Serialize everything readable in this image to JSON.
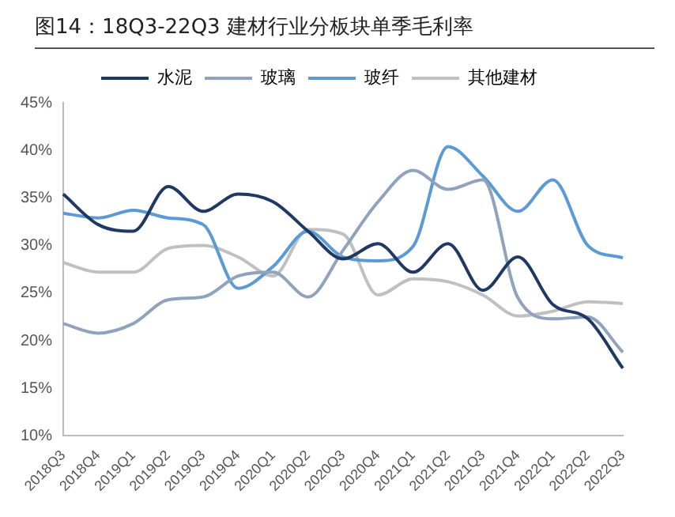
{
  "chart_data": {
    "type": "line",
    "title": "图14：18Q3-22Q3 建材行业分板块单季毛利率",
    "categories": [
      "2018Q3",
      "2018Q4",
      "2019Q1",
      "2019Q2",
      "2019Q3",
      "2019Q4",
      "2020Q1",
      "2020Q2",
      "2020Q3",
      "2020Q4",
      "2021Q1",
      "2021Q2",
      "2021Q3",
      "2021Q4",
      "2022Q1",
      "2022Q2",
      "2022Q3"
    ],
    "series": [
      {
        "name": "水泥",
        "color": "#1f3864",
        "values": [
          35.4,
          32.2,
          31.5,
          36.2,
          33.6,
          35.4,
          34.6,
          31.5,
          28.6,
          30.2,
          27.2,
          30.2,
          25.3,
          28.8,
          23.8,
          22.3,
          17.1
        ]
      },
      {
        "name": "玻璃",
        "color": "#8fa3bd",
        "values": [
          21.8,
          20.8,
          21.8,
          24.3,
          24.6,
          26.8,
          27.2,
          24.6,
          29.5,
          34.6,
          37.9,
          35.9,
          36.9,
          24.5,
          22.3,
          22.5,
          18.8
        ]
      },
      {
        "name": "玻纤",
        "color": "#5b9bd5",
        "values": [
          33.4,
          32.9,
          33.7,
          32.9,
          32.2,
          25.5,
          27.8,
          31.5,
          28.8,
          28.4,
          29.9,
          40.4,
          37.3,
          33.6,
          36.9,
          30.0,
          28.7
        ]
      },
      {
        "name": "其他建材",
        "color": "#c0c0c0",
        "values": [
          28.2,
          27.2,
          27.2,
          29.7,
          30.0,
          28.8,
          26.8,
          31.7,
          31.2,
          24.8,
          26.5,
          26.2,
          24.8,
          22.6,
          23.1,
          24.1,
          23.9
        ]
      }
    ],
    "ylim": [
      10,
      45
    ],
    "yticks": [
      {
        "value": 10,
        "label": "10%"
      },
      {
        "value": 15,
        "label": "15%"
      },
      {
        "value": 20,
        "label": "20%"
      },
      {
        "value": 25,
        "label": "25%"
      },
      {
        "value": 30,
        "label": "30%"
      },
      {
        "value": 35,
        "label": "35%"
      },
      {
        "value": 40,
        "label": "40%"
      },
      {
        "value": 45,
        "label": "45%"
      }
    ],
    "grid": false,
    "legend": "top",
    "marker": "none",
    "line_style": "solid"
  }
}
